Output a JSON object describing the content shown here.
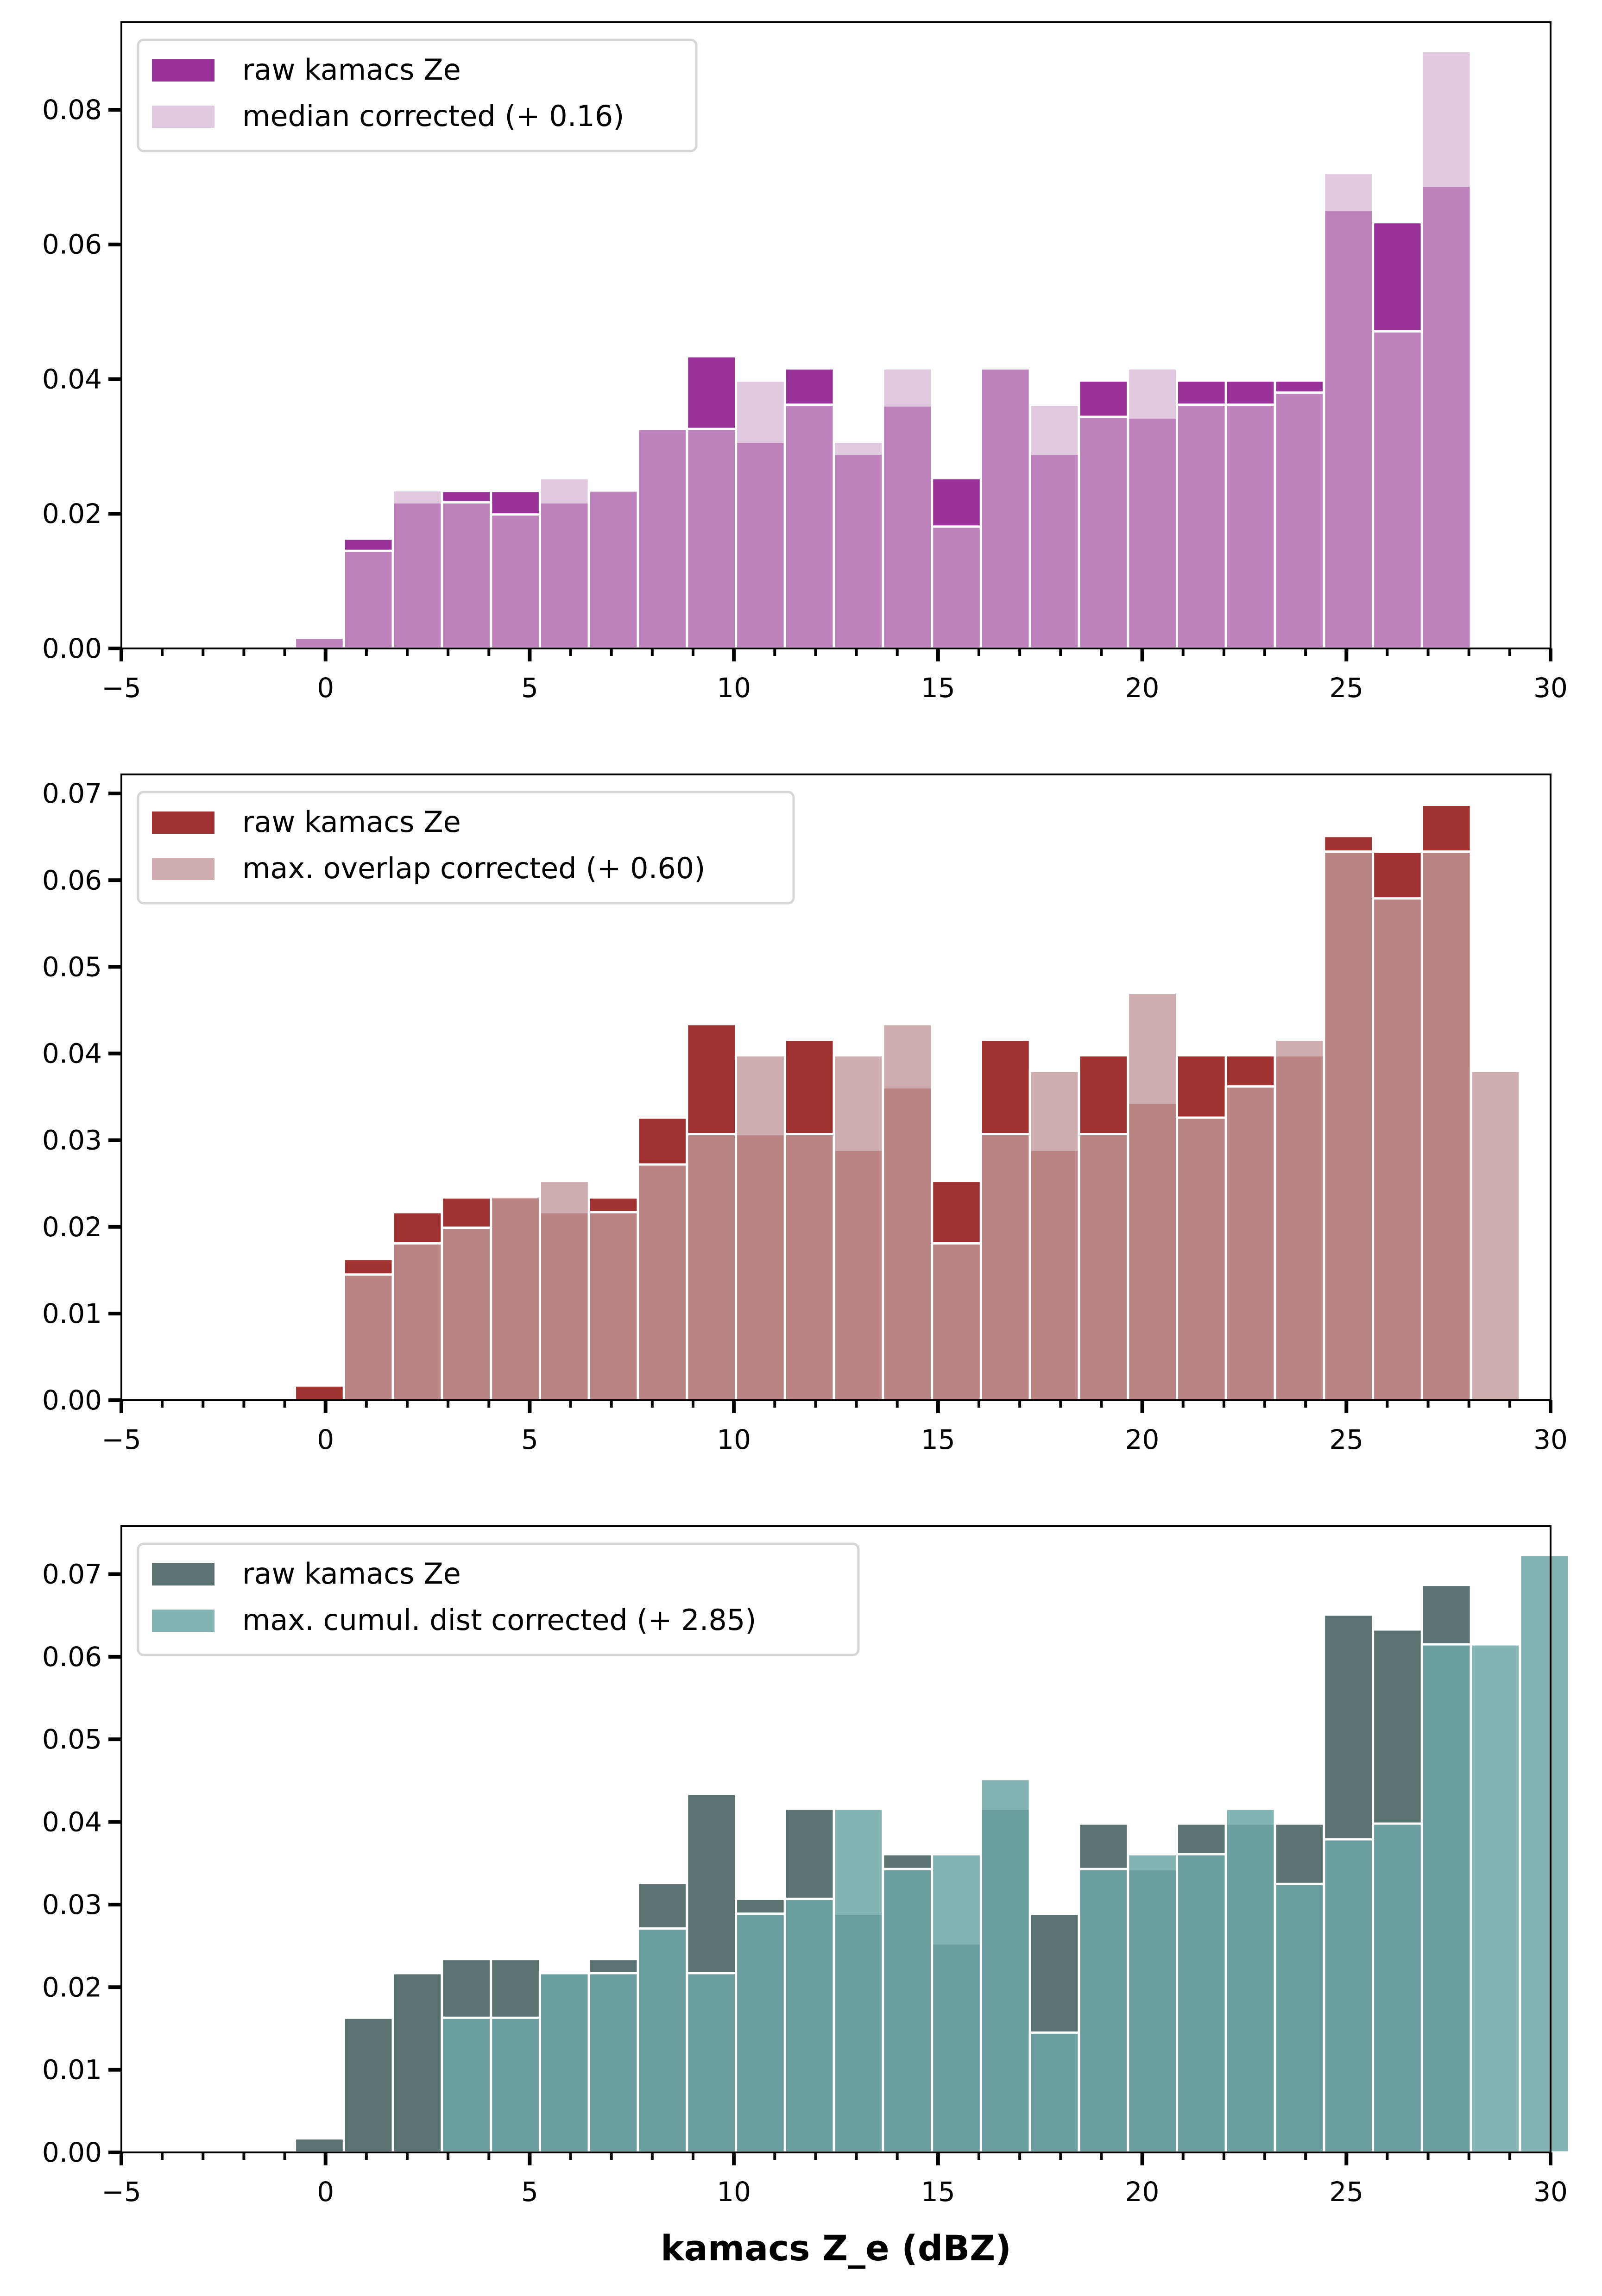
{
  "figure": {
    "xlabel": "kamacs Z_e (dBZ)"
  },
  "chart_data": [
    {
      "type": "bar",
      "subtype": "overlaid-histogram",
      "title": "",
      "xlabel": "",
      "ylabel": "",
      "xlim": [
        -5,
        30
      ],
      "ylim": [
        0,
        0.093
      ],
      "grid": false,
      "legend_position": "top-left",
      "bin_width": 1.2,
      "x_ticks": [
        "−5",
        "0",
        "5",
        "10",
        "15",
        "20",
        "25",
        "30"
      ],
      "x_tick_values": [
        -5,
        0,
        5,
        10,
        15,
        20,
        25,
        30
      ],
      "y_ticks": [
        "0.00",
        "0.02",
        "0.04",
        "0.06",
        "0.08"
      ],
      "y_tick_values": [
        0,
        0.02,
        0.04,
        0.06,
        0.08
      ],
      "series": [
        {
          "name": "raw kamacs Ze",
          "color": "#993399",
          "opacity": 1,
          "bin_starts": [
            -0.75,
            0.45,
            1.65,
            2.85,
            4.05,
            5.25,
            6.45,
            7.65,
            8.85,
            10.05,
            11.25,
            12.45,
            13.65,
            14.85,
            16.05,
            17.25,
            18.45,
            19.65,
            20.85,
            22.05,
            23.25,
            24.45,
            25.65,
            26.85
          ],
          "values": [
            0.0017,
            0.0163,
            0.0217,
            0.0234,
            0.0234,
            0.0217,
            0.0234,
            0.0326,
            0.0434,
            0.0307,
            0.0416,
            0.0289,
            0.0361,
            0.0253,
            0.0416,
            0.0289,
            0.0398,
            0.0343,
            0.0398,
            0.0398,
            0.0398,
            0.0651,
            0.0633,
            0.0687
          ]
        },
        {
          "name": "median corrected (+ 0.16)",
          "color": "#d1aed0",
          "opacity": 0.65,
          "bin_starts": [
            -0.75,
            0.45,
            1.65,
            2.85,
            4.05,
            5.25,
            6.45,
            7.65,
            8.85,
            10.05,
            11.25,
            12.45,
            13.65,
            14.85,
            16.05,
            17.25,
            18.45,
            19.65,
            20.85,
            22.05,
            23.25,
            24.45,
            25.65,
            26.85
          ],
          "values": [
            0.0016,
            0.0145,
            0.0235,
            0.0217,
            0.0199,
            0.0253,
            0.0235,
            0.0326,
            0.0326,
            0.0398,
            0.0362,
            0.0307,
            0.0416,
            0.0181,
            0.0416,
            0.0362,
            0.0344,
            0.0416,
            0.0362,
            0.0362,
            0.038,
            0.0706,
            0.0471,
            0.0887
          ]
        }
      ]
    },
    {
      "type": "bar",
      "subtype": "overlaid-histogram",
      "title": "",
      "xlabel": "",
      "ylabel": "",
      "xlim": [
        -5,
        30
      ],
      "ylim": [
        0,
        0.0722
      ],
      "grid": false,
      "legend_position": "top-left",
      "bin_width": 1.2,
      "x_ticks": [
        "−5",
        "0",
        "5",
        "10",
        "15",
        "20",
        "25",
        "30"
      ],
      "x_tick_values": [
        -5,
        0,
        5,
        10,
        15,
        20,
        25,
        30
      ],
      "y_ticks": [
        "0.00",
        "0.01",
        "0.02",
        "0.03",
        "0.04",
        "0.05",
        "0.06",
        "0.07"
      ],
      "y_tick_values": [
        0,
        0.01,
        0.02,
        0.03,
        0.04,
        0.05,
        0.06,
        0.07
      ],
      "series": [
        {
          "name": "raw kamacs Ze",
          "color": "#a03232",
          "opacity": 1,
          "bin_starts": [
            -0.75,
            0.45,
            1.65,
            2.85,
            4.05,
            5.25,
            6.45,
            7.65,
            8.85,
            10.05,
            11.25,
            12.45,
            13.65,
            14.85,
            16.05,
            17.25,
            18.45,
            19.65,
            20.85,
            22.05,
            23.25,
            24.45,
            25.65,
            26.85
          ],
          "values": [
            0.0017,
            0.0163,
            0.0217,
            0.0234,
            0.0234,
            0.0217,
            0.0234,
            0.0326,
            0.0434,
            0.0307,
            0.0416,
            0.0289,
            0.0361,
            0.0253,
            0.0416,
            0.0289,
            0.0398,
            0.0343,
            0.0398,
            0.0398,
            0.0398,
            0.0651,
            0.0633,
            0.0687
          ]
        },
        {
          "name": "max. overlap corrected (+ 0.60)",
          "color": "#c19898",
          "opacity": 0.8,
          "bin_starts": [
            -0.75,
            0.45,
            1.65,
            2.85,
            4.05,
            5.25,
            6.45,
            7.65,
            8.85,
            10.05,
            11.25,
            12.45,
            13.65,
            14.85,
            16.05,
            17.25,
            18.45,
            19.65,
            20.85,
            22.05,
            23.25,
            24.45,
            25.65,
            26.85,
            28.05
          ],
          "values": [
            0,
            0.0145,
            0.0181,
            0.0199,
            0.0235,
            0.0253,
            0.0217,
            0.0272,
            0.0307,
            0.0398,
            0.0307,
            0.0398,
            0.0434,
            0.0181,
            0.0307,
            0.038,
            0.0307,
            0.047,
            0.0326,
            0.0362,
            0.0416,
            0.0633,
            0.0579,
            0.0633,
            0.038
          ]
        }
      ]
    },
    {
      "type": "bar",
      "subtype": "overlaid-histogram",
      "title": "",
      "xlabel": "kamacs Z_e (dBZ)",
      "ylabel": "",
      "xlim": [
        -5,
        30
      ],
      "ylim": [
        0,
        0.0758
      ],
      "grid": false,
      "legend_position": "top-left",
      "bin_width": 1.2,
      "x_ticks": [
        "−5",
        "0",
        "5",
        "10",
        "15",
        "20",
        "25",
        "30"
      ],
      "x_tick_values": [
        -5,
        0,
        5,
        10,
        15,
        20,
        25,
        30
      ],
      "y_ticks": [
        "0.00",
        "0.01",
        "0.02",
        "0.03",
        "0.04",
        "0.05",
        "0.06",
        "0.07"
      ],
      "y_tick_values": [
        0,
        0.01,
        0.02,
        0.03,
        0.04,
        0.05,
        0.06,
        0.07
      ],
      "series": [
        {
          "name": "raw kamacs Ze",
          "color": "#5b7472",
          "opacity": 1,
          "bin_starts": [
            -0.75,
            0.45,
            1.65,
            2.85,
            4.05,
            5.25,
            6.45,
            7.65,
            8.85,
            10.05,
            11.25,
            12.45,
            13.65,
            14.85,
            16.05,
            17.25,
            18.45,
            19.65,
            20.85,
            22.05,
            23.25,
            24.45,
            25.65,
            26.85
          ],
          "values": [
            0.0017,
            0.0163,
            0.0217,
            0.0234,
            0.0234,
            0.0217,
            0.0234,
            0.0326,
            0.0434,
            0.0307,
            0.0416,
            0.0289,
            0.0361,
            0.0253,
            0.0416,
            0.0289,
            0.0398,
            0.0343,
            0.0398,
            0.0398,
            0.0398,
            0.0651,
            0.0633,
            0.0687
          ]
        },
        {
          "name": "max. cumul. dist corrected (+ 2.85)",
          "color": "#6fa7a7",
          "opacity": 0.85,
          "bin_starts": [
            -0.75,
            0.45,
            1.65,
            2.85,
            4.05,
            5.25,
            6.45,
            7.65,
            8.85,
            10.05,
            11.25,
            12.45,
            13.65,
            14.85,
            16.05,
            17.25,
            18.45,
            19.65,
            20.85,
            22.05,
            23.25,
            24.45,
            25.65,
            26.85,
            28.05,
            29.25
          ],
          "values": [
            0,
            0,
            0,
            0.0163,
            0.0163,
            0.0217,
            0.0217,
            0.0271,
            0.0217,
            0.0289,
            0.0307,
            0.0416,
            0.0343,
            0.0361,
            0.0452,
            0.0145,
            0.0343,
            0.0361,
            0.0361,
            0.0416,
            0.0325,
            0.0379,
            0.0398,
            0.0615,
            0.0615,
            0.0723
          ]
        }
      ]
    }
  ]
}
